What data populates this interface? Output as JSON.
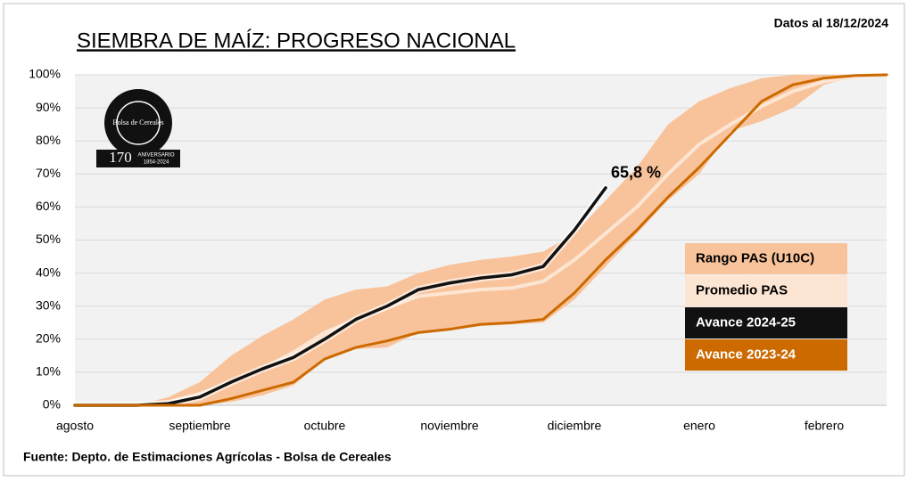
{
  "chart_data": {
    "type": "line",
    "title": "SIEMBRA DE MAÍZ: PROGRESO NACIONAL",
    "subtitle": "Datos al 18/12/2024",
    "source": "Fuente: Depto. de Estimaciones Agrícolas - Bolsa de Cereales",
    "logo": {
      "name": "Bolsa de Cereales",
      "number": "170",
      "caption": "ANIVERSARIO",
      "years": "1854-2024"
    },
    "categories": [
      "agosto",
      null,
      null,
      null,
      "septiembre",
      null,
      null,
      null,
      "octubre",
      null,
      null,
      null,
      "noviembre",
      null,
      null,
      null,
      "diciembre",
      null,
      null,
      null,
      "enero",
      null,
      null,
      null,
      "febrero",
      null,
      null
    ],
    "ylim": [
      0,
      100
    ],
    "yticks": [
      {
        "value": 0,
        "label": "0%"
      },
      {
        "value": 10,
        "label": "10%"
      },
      {
        "value": 20,
        "label": "20%"
      },
      {
        "value": 30,
        "label": "30%"
      },
      {
        "value": 40,
        "label": "40%"
      },
      {
        "value": 50,
        "label": "50%"
      },
      {
        "value": 60,
        "label": "60%"
      },
      {
        "value": 70,
        "label": "70%"
      },
      {
        "value": 80,
        "label": "80%"
      },
      {
        "value": 90,
        "label": "90%"
      },
      {
        "value": 100,
        "label": "100%"
      }
    ],
    "grid": true,
    "series": [
      {
        "name": "Rango PAS (U10C)",
        "color": "#f8c39b",
        "kind": "band",
        "lower": [
          0,
          0,
          0,
          0,
          0,
          1,
          3,
          6,
          14,
          17,
          17.5,
          22,
          23,
          24,
          24.5,
          25,
          32,
          42,
          52,
          62,
          70,
          83,
          86,
          90,
          97,
          99.5,
          100
        ],
        "upper": [
          0,
          0,
          0,
          2.5,
          7,
          15,
          21,
          26,
          32,
          35,
          36,
          40,
          42.5,
          44,
          45,
          46.5,
          52,
          62,
          72,
          85,
          92,
          96,
          99,
          100,
          100,
          100,
          100
        ]
      },
      {
        "name": "Promedio PAS",
        "color": "#fde5d3",
        "values": [
          0,
          0,
          0.2,
          1,
          3.5,
          7,
          11,
          16,
          22,
          26,
          29.5,
          33,
          34,
          35,
          35.5,
          37.5,
          44,
          52,
          60,
          70,
          79,
          85,
          90.5,
          95,
          98,
          99.5,
          100
        ]
      },
      {
        "name": "Avance 2024-25",
        "color": "#111111",
        "values": [
          0,
          0,
          0,
          0.5,
          2.5,
          7,
          11,
          14.5,
          20,
          26,
          30,
          35,
          37,
          38.5,
          39.5,
          42,
          53,
          65.8,
          null,
          null,
          null,
          null,
          null,
          null,
          null,
          null,
          null
        ],
        "value_labels": [
          null,
          null,
          null,
          null,
          null,
          null,
          null,
          null,
          null,
          null,
          null,
          null,
          null,
          null,
          null,
          null,
          null,
          "65,8 %",
          null,
          null,
          null,
          null,
          null,
          null,
          null,
          null,
          null
        ]
      },
      {
        "name": "Avance 2023-24",
        "color": "#cc6a00",
        "values": [
          0,
          0,
          0,
          0,
          0,
          2,
          4.5,
          7,
          14,
          17.5,
          19.5,
          22,
          23,
          24.5,
          25,
          26,
          34,
          44,
          53,
          63,
          72,
          82,
          92,
          97,
          99,
          99.8,
          100
        ]
      }
    ]
  }
}
